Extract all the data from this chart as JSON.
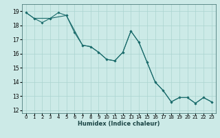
{
  "xlabel": "Humidex (Indice chaleur)",
  "background_color": "#cceae7",
  "grid_color": "#aad4d0",
  "line_color": "#1a6b6b",
  "xlim": [
    -0.5,
    23.5
  ],
  "ylim": [
    11.8,
    19.5
  ],
  "xticks": [
    0,
    1,
    2,
    3,
    4,
    5,
    6,
    7,
    8,
    9,
    10,
    11,
    12,
    13,
    14,
    15,
    16,
    17,
    18,
    19,
    20,
    21,
    22,
    23
  ],
  "yticks": [
    12,
    13,
    14,
    15,
    16,
    17,
    18,
    19
  ],
  "line1_x": [
    0,
    1,
    2,
    3,
    4,
    5,
    6,
    7,
    8,
    9,
    10,
    11,
    12,
    13,
    14,
    15,
    16,
    17,
    18,
    19,
    20,
    21,
    22,
    23
  ],
  "line1_y": [
    18.9,
    18.5,
    18.2,
    18.5,
    18.9,
    18.7,
    17.5,
    16.6,
    16.5,
    16.1,
    15.6,
    15.5,
    16.1,
    17.6,
    16.8,
    15.4,
    14.0,
    13.4,
    12.6,
    12.9,
    12.9,
    12.5,
    12.9,
    12.6
  ],
  "line2_x": [
    0,
    1,
    3,
    5,
    7,
    8,
    9,
    10,
    11,
    12,
    13,
    14,
    15,
    16,
    17,
    18,
    19,
    20,
    21,
    22,
    23
  ],
  "line2_y": [
    18.9,
    18.5,
    18.5,
    18.7,
    16.6,
    16.5,
    16.1,
    15.6,
    15.5,
    16.1,
    17.6,
    16.8,
    15.4,
    14.0,
    13.4,
    12.6,
    12.9,
    12.9,
    12.5,
    12.9,
    12.6
  ],
  "xlabel_fontsize": 6.0,
  "tick_fontsize": 5.0,
  "ytick_fontsize": 5.5
}
